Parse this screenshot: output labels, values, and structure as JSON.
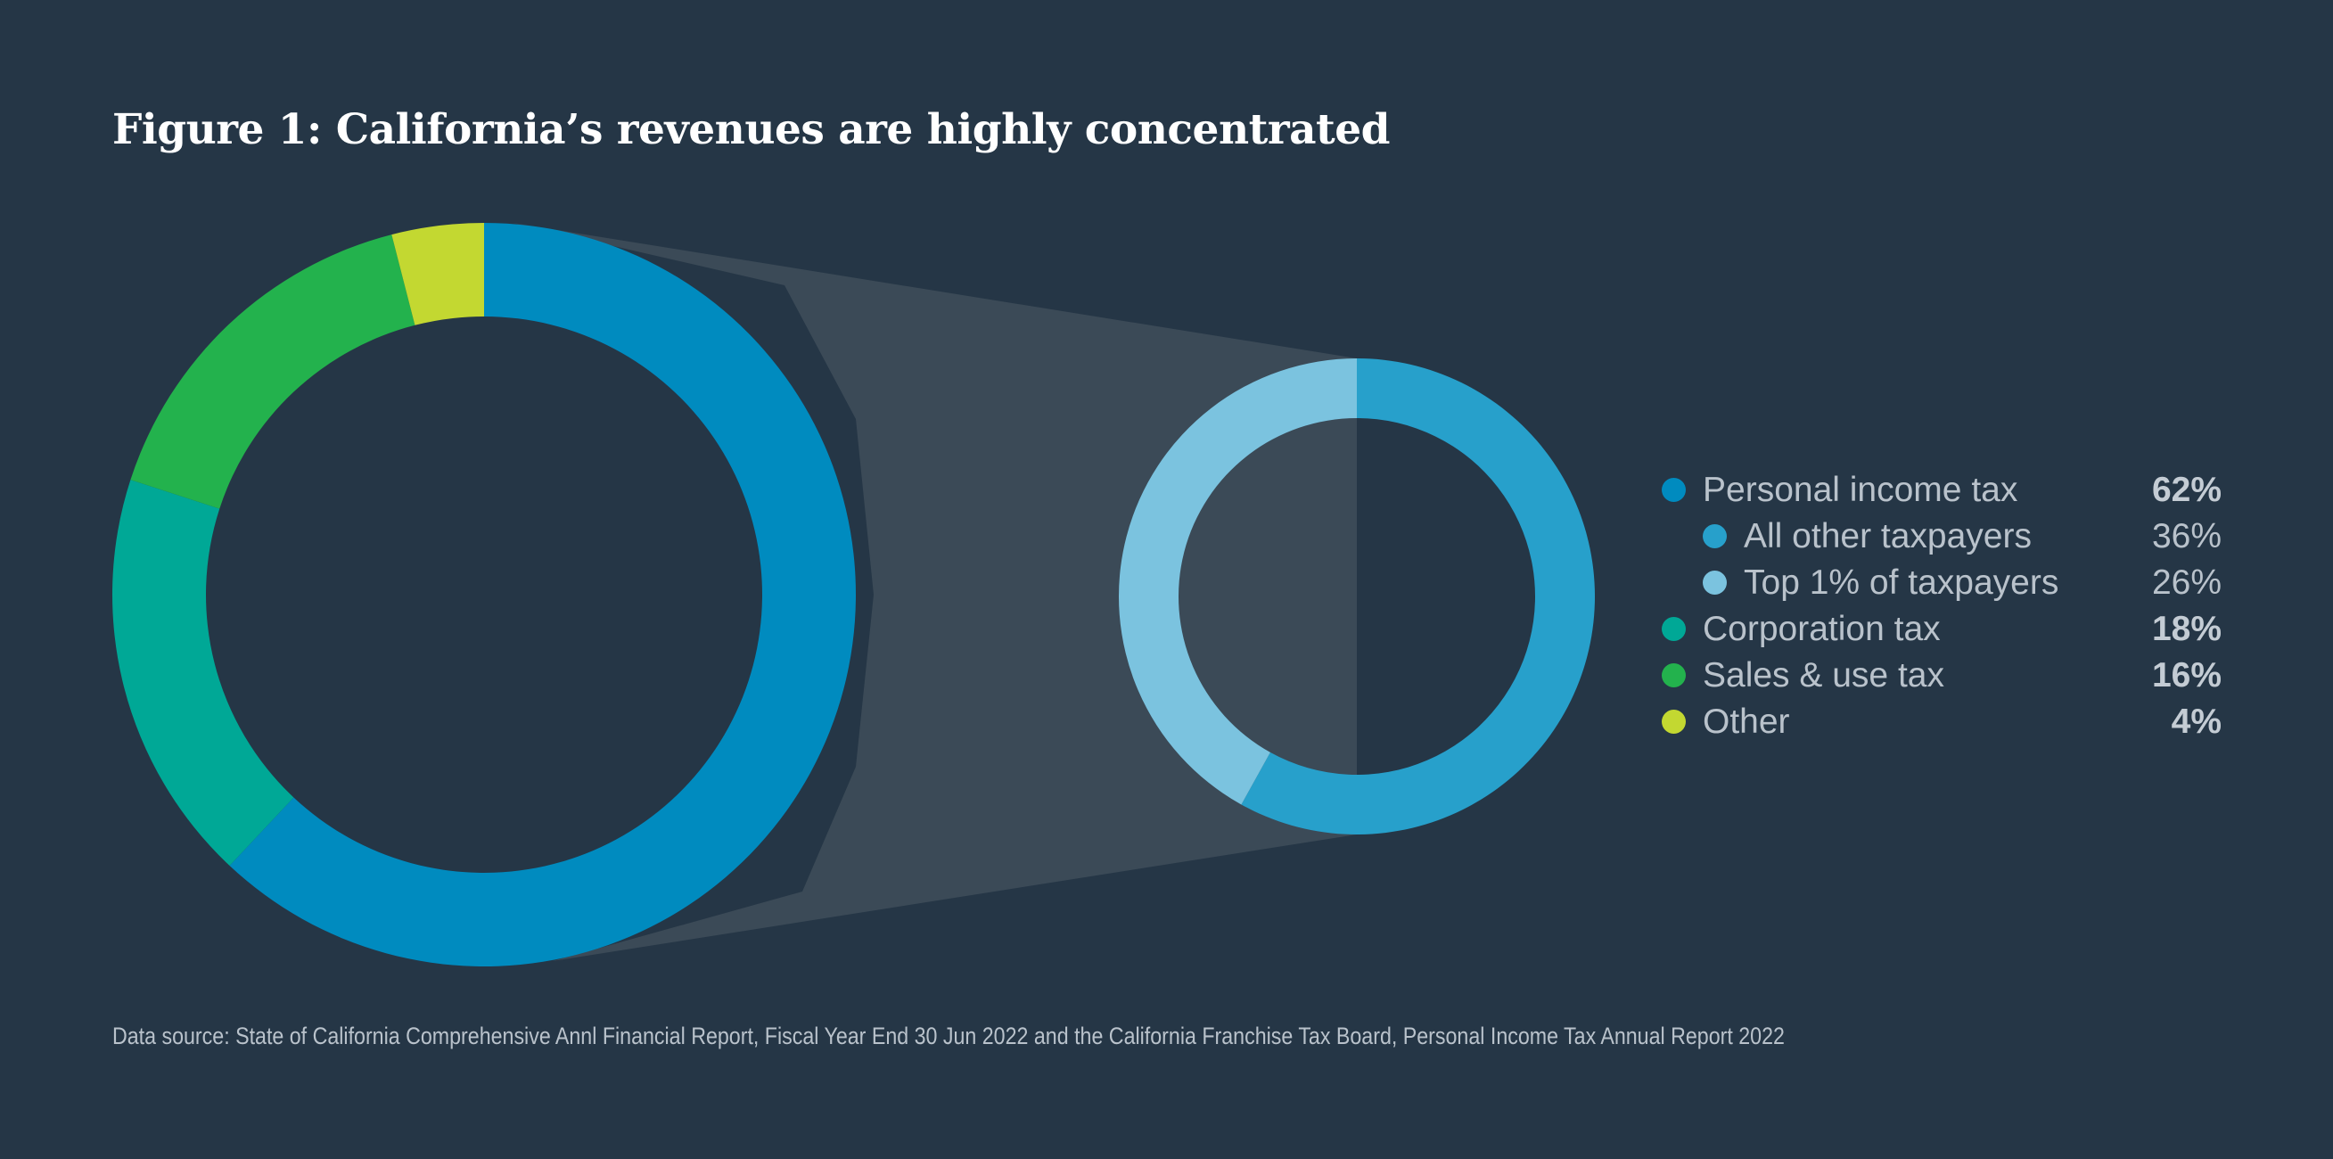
{
  "title": "Figure 1: California’s revenues are highly concentrated",
  "source": "Data source: State of California Comprehensive Annl Financial Report, Fiscal Year End 30 Jun 2022 and the California Franchise Tax Board, Personal Income Tax Annual Report 2022",
  "legend": [
    {
      "label": "Personal income tax",
      "value": "62%",
      "color": "#008bbf",
      "level": "main"
    },
    {
      "label": "All other taxpayers",
      "value": "36%",
      "color": "#27a0cb",
      "level": "sub"
    },
    {
      "label": "Top 1% of taxpayers",
      "value": "26%",
      "color": "#7bc3df",
      "level": "sub"
    },
    {
      "label": "Corporation tax",
      "value": "18%",
      "color": "#00a896",
      "level": "main"
    },
    {
      "label": "Sales & use tax",
      "value": "16%",
      "color": "#23b24d",
      "level": "main"
    },
    {
      "label": "Other",
      "value": "4%",
      "color": "#c3d831",
      "level": "main"
    }
  ],
  "chart_data": [
    {
      "type": "donut",
      "name": "California revenues",
      "categories": [
        "Personal income tax",
        "Corporation tax",
        "Sales & use tax",
        "Other"
      ],
      "values": [
        62,
        18,
        16,
        4
      ],
      "unit": "%",
      "colors": [
        "#008bbf",
        "#00a896",
        "#23b24d",
        "#c3d831"
      ],
      "direction": "clockwise from top"
    },
    {
      "type": "donut",
      "name": "Personal income tax breakdown",
      "categories": [
        "All other taxpayers",
        "Top 1% of taxpayers"
      ],
      "values": [
        36,
        26
      ],
      "unit": "%",
      "colors": [
        "#27a0cb",
        "#7bc3df"
      ],
      "direction": "clockwise from top",
      "note": "zoom of Personal income tax slice"
    }
  ]
}
